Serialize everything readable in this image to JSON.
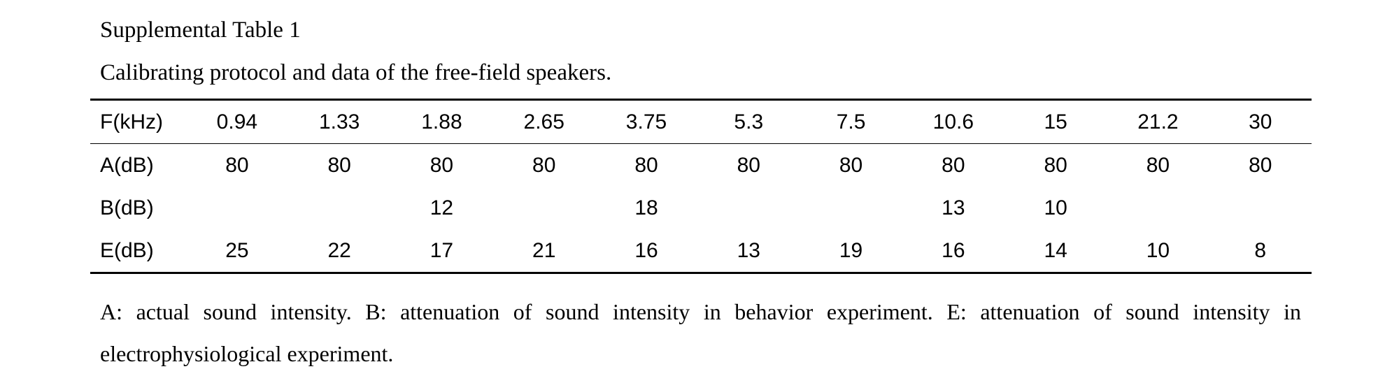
{
  "caption": {
    "label": "Supplemental Table 1",
    "title": "Calibrating protocol and data of the free-field speakers."
  },
  "table": {
    "header": {
      "label": "F(kHz)",
      "cells": [
        "0.94",
        "1.33",
        "1.88",
        "2.65",
        "3.75",
        "5.3",
        "7.5",
        "10.6",
        "15",
        "21.2",
        "30"
      ]
    },
    "rows": [
      {
        "label": "A(dB)",
        "cells": [
          "80",
          "80",
          "80",
          "80",
          "80",
          "80",
          "80",
          "80",
          "80",
          "80",
          "80"
        ]
      },
      {
        "label": "B(dB)",
        "cells": [
          "",
          "",
          "12",
          "",
          "18",
          "",
          "",
          "13",
          "10",
          "",
          ""
        ]
      },
      {
        "label": "E(dB)",
        "cells": [
          "25",
          "22",
          "17",
          "21",
          "16",
          "13",
          "19",
          "16",
          "14",
          "10",
          "8"
        ]
      }
    ]
  },
  "footnote": "A: actual sound intensity. B: attenuation of sound intensity in behavior experiment. E: attenuation of sound intensity in electrophysiological experiment."
}
